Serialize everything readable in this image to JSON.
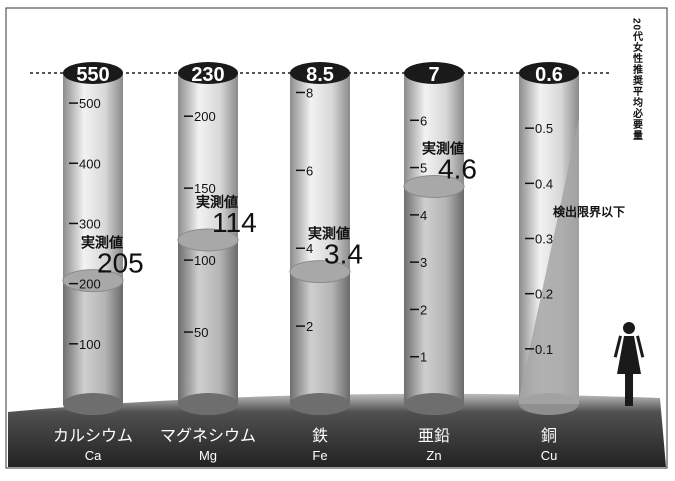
{
  "chart_data": {
    "type": "bar",
    "side_label": "20代女性推奨平均必要量",
    "minerals": [
      {
        "name_ja": "カルシウム",
        "symbol": "Ca",
        "recommended": 550,
        "recommended_label": "550",
        "measured": 205,
        "measured_caption": "実測値",
        "measured_label": "205",
        "scale_max": 550,
        "ticks": [
          100,
          200,
          300,
          400,
          500
        ]
      },
      {
        "name_ja": "マグネシウム",
        "symbol": "Mg",
        "recommended": 230,
        "recommended_label": "230",
        "measured": 114,
        "measured_caption": "実測値",
        "measured_label": "114",
        "scale_max": 230,
        "ticks": [
          50,
          100,
          150,
          200
        ]
      },
      {
        "name_ja": "鉄",
        "symbol": "Fe",
        "recommended": 8.5,
        "recommended_label": "8.5",
        "measured": 3.4,
        "measured_caption": "実測値",
        "measured_label": "3.4",
        "scale_max": 8.5,
        "ticks": [
          2,
          4,
          6,
          8
        ]
      },
      {
        "name_ja": "亜鉛",
        "symbol": "Zn",
        "recommended": 7,
        "recommended_label": "7",
        "measured": 4.6,
        "measured_caption": "実測値",
        "measured_label": "4.6",
        "scale_max": 7,
        "ticks": [
          1,
          2,
          3,
          4,
          5,
          6
        ]
      },
      {
        "name_ja": "銅",
        "symbol": "Cu",
        "recommended": 0.6,
        "recommended_label": "0.6",
        "measured": null,
        "measured_caption": "検出限界以下",
        "measured_label": "",
        "scale_max": 0.6,
        "ticks": [
          0.1,
          0.2,
          0.3,
          0.4,
          0.5
        ]
      }
    ]
  },
  "colors": {
    "tube_light": "#e4e4e4",
    "tube_dark": "#9a9a9a",
    "fill_light": "#c4c4c4",
    "fill_dark": "#7c7c7c",
    "cap": "#1a1a1a",
    "ground": "#2e2e2e",
    "text": "#111111"
  },
  "icons": {
    "female": "female-person-icon"
  }
}
